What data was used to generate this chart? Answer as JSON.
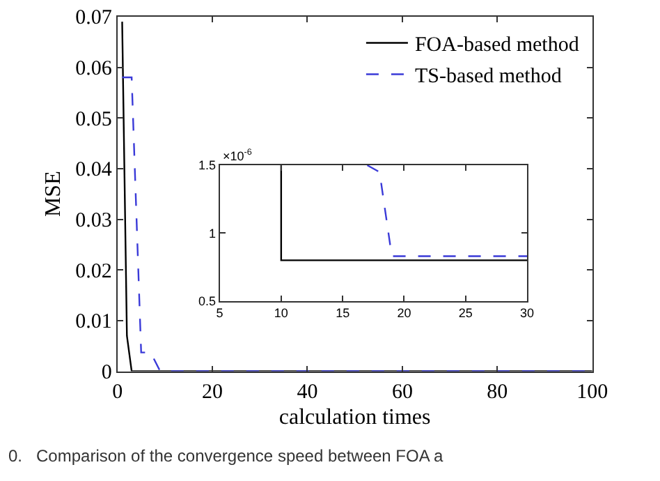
{
  "chart_data": [
    {
      "type": "line",
      "xlabel": "calculation times",
      "ylabel": "MSE",
      "xlim": [
        0,
        100
      ],
      "xticks": [
        0,
        20,
        40,
        60,
        80,
        100
      ],
      "ylim": [
        0,
        0.07
      ],
      "yticks": [
        0,
        0.01,
        0.02,
        0.03,
        0.04,
        0.05,
        0.06,
        0.07
      ],
      "legend": "top right",
      "series": [
        {
          "name": "FOA-based method",
          "color": "#000000",
          "line_style": "solid",
          "x": [
            1,
            2,
            3,
            100
          ],
          "values": [
            0.069,
            0.007,
            0,
            0
          ]
        },
        {
          "name": "TS-based method",
          "color": "#3a3ad8",
          "line_style": "dashed",
          "x": [
            1,
            3,
            5,
            7,
            9,
            100
          ],
          "values": [
            0.058,
            0.058,
            0.0037,
            0.0037,
            0,
            0
          ]
        }
      ],
      "annotations": [
        "0.   Comparison of the convergence speed between FOA a"
      ]
    },
    {
      "type": "line",
      "xlim": [
        5,
        30
      ],
      "xticks": [
        5,
        10,
        15,
        20,
        25,
        30
      ],
      "ylim": [
        0.5,
        1.5
      ],
      "yticks": [
        0.5,
        1,
        1.5
      ],
      "legend": false,
      "series": [
        {
          "color": "#000000",
          "line_style": "solid",
          "x": [
            10,
            10,
            30
          ],
          "values": [
            1.5,
            0.8,
            0.8
          ]
        },
        {
          "color": "#3a3ad8",
          "line_style": "dashed",
          "x": [
            17,
            18,
            19,
            30
          ],
          "values": [
            1.5,
            1.45,
            0.83,
            0.83
          ]
        }
      ],
      "annotations": [
        "×10$^{-6}$"
      ]
    }
  ]
}
